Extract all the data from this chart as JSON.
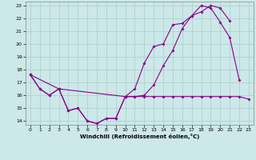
{
  "bg_color": "#cce8e8",
  "grid_color": "#aacccc",
  "line_color": "#880088",
  "xlim": [
    -0.5,
    23.5
  ],
  "ylim": [
    13.7,
    23.3
  ],
  "yticks": [
    14,
    15,
    16,
    17,
    18,
    19,
    20,
    21,
    22,
    23
  ],
  "xticks": [
    0,
    1,
    2,
    3,
    4,
    5,
    6,
    7,
    8,
    9,
    10,
    11,
    12,
    13,
    14,
    15,
    16,
    17,
    18,
    19,
    20,
    21,
    22,
    23
  ],
  "xlabel": "Windchill (Refroidissement éolien,°C)",
  "line1_x": [
    0,
    1,
    2,
    3,
    4,
    5,
    6,
    7,
    8,
    9,
    10,
    11,
    12,
    13,
    14,
    15,
    16,
    17,
    18,
    19,
    20,
    21,
    22,
    23
  ],
  "line1_y": [
    17.6,
    16.5,
    16.0,
    16.5,
    14.8,
    15.0,
    14.0,
    13.8,
    14.2,
    14.2,
    15.9,
    15.9,
    15.9,
    15.9,
    15.9,
    15.9,
    15.9,
    15.9,
    15.9,
    15.9,
    15.9,
    15.9,
    15.9,
    15.7
  ],
  "line2_x": [
    0,
    1,
    2,
    3,
    4,
    5,
    6,
    7,
    8,
    9,
    10,
    11,
    12,
    13,
    14,
    15,
    16,
    17,
    18,
    19,
    20,
    21,
    22
  ],
  "line2_y": [
    17.6,
    16.5,
    16.0,
    16.5,
    14.8,
    15.0,
    14.0,
    13.8,
    14.2,
    14.2,
    15.9,
    16.5,
    18.5,
    19.8,
    20.0,
    21.5,
    21.6,
    22.2,
    23.0,
    22.8,
    21.7,
    20.5,
    17.2
  ],
  "line3_x": [
    0,
    3,
    10,
    11,
    12,
    13,
    14,
    15,
    16,
    17,
    18,
    19,
    20,
    21
  ],
  "line3_y": [
    17.6,
    16.5,
    15.9,
    15.9,
    16.0,
    16.8,
    18.3,
    19.5,
    21.2,
    22.2,
    22.5,
    23.0,
    22.8,
    21.8
  ]
}
